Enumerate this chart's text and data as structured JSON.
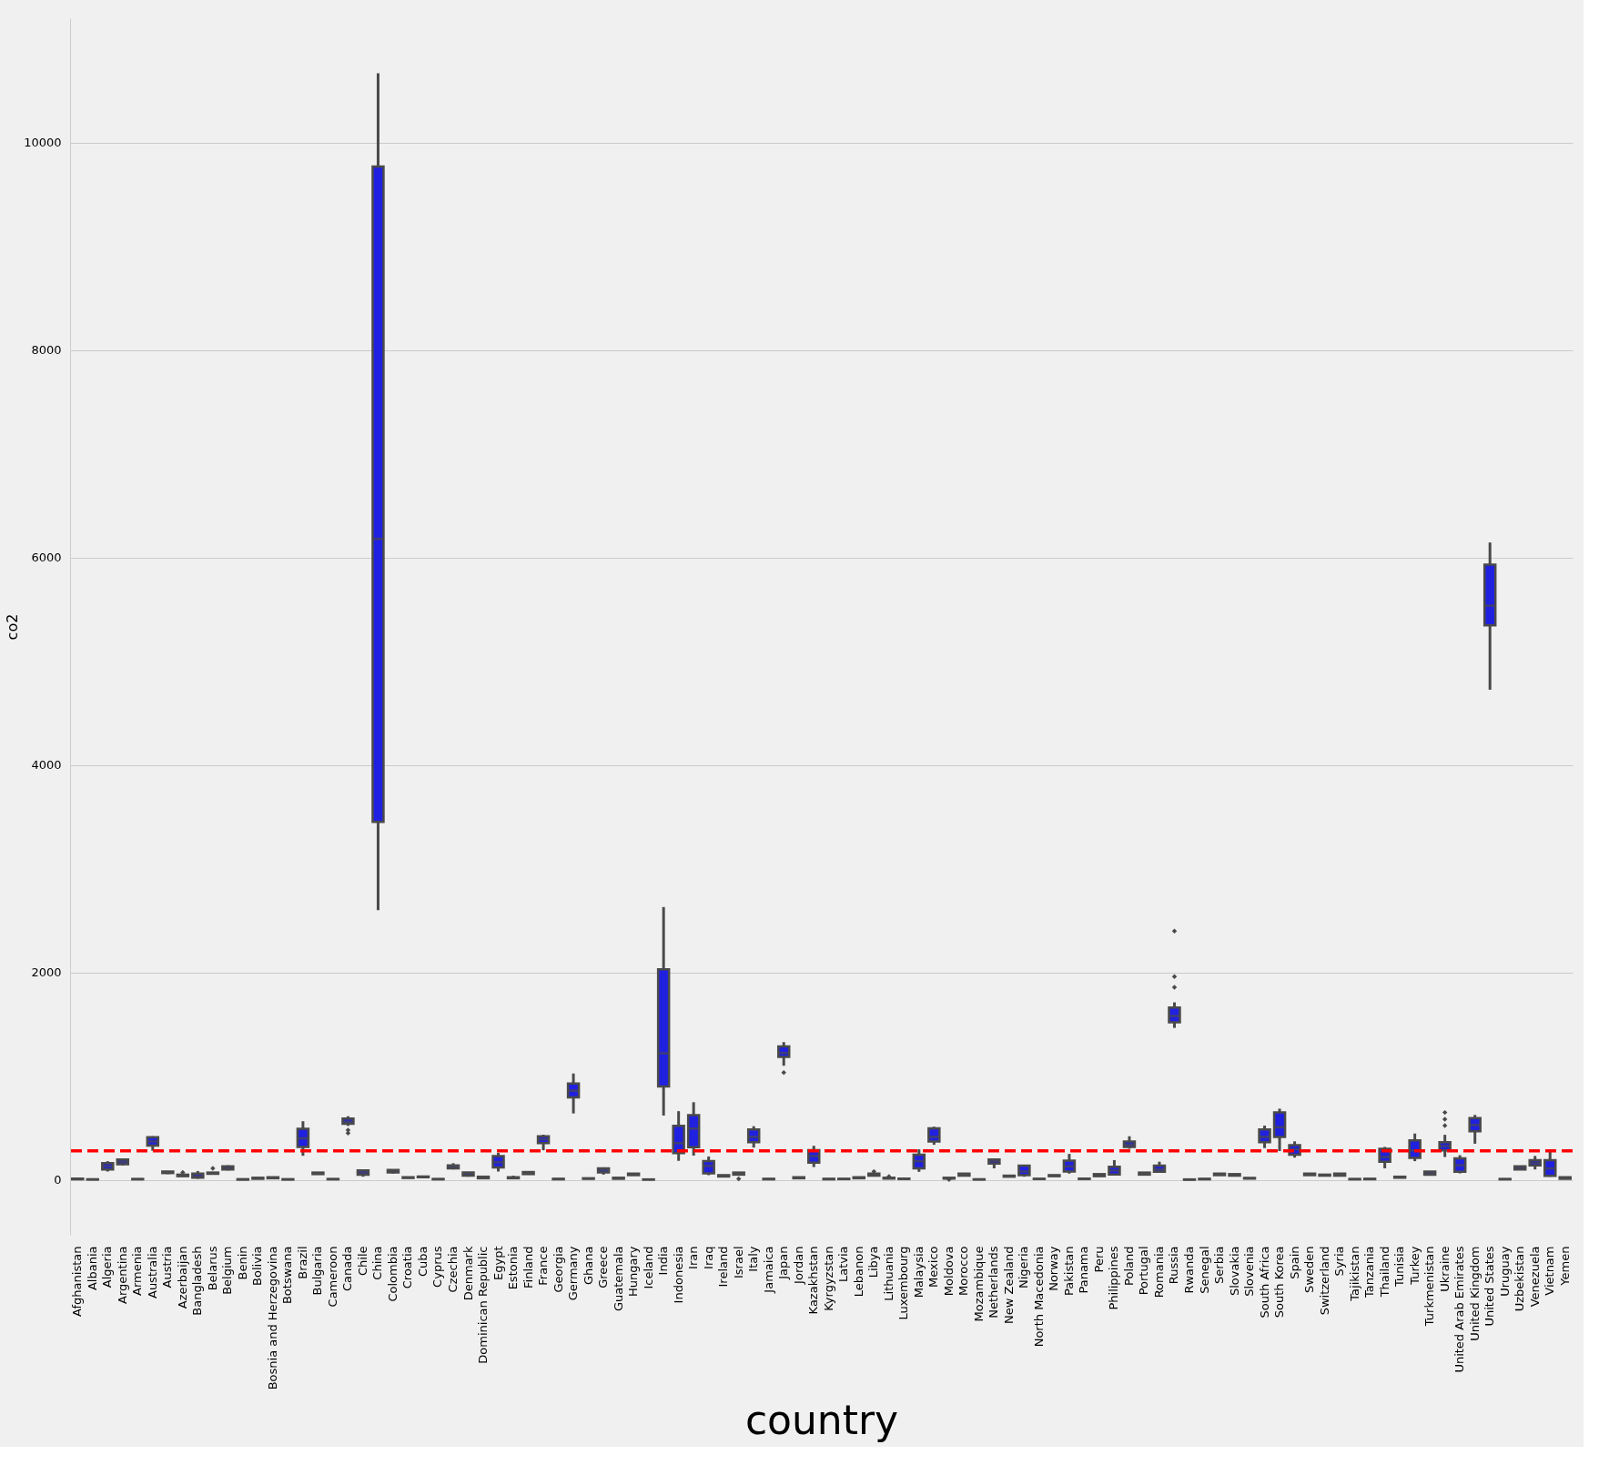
{
  "chart_data": {
    "type": "box",
    "xlabel": "country",
    "ylabel": "co2",
    "categories": [
      "Afghanistan",
      "Albania",
      "Algeria",
      "Argentina",
      "Armenia",
      "Australia",
      "Austria",
      "Azerbaijan",
      "Bangladesh",
      "Belarus",
      "Belgium",
      "Benin",
      "Bolivia",
      "Bosnia and Herzegovina",
      "Botswana",
      "Brazil",
      "Bulgaria",
      "Cameroon",
      "Canada",
      "Chile",
      "China",
      "Colombia",
      "Croatia",
      "Cuba",
      "Cyprus",
      "Czechia",
      "Denmark",
      "Dominican Republic",
      "Egypt",
      "Estonia",
      "Finland",
      "France",
      "Georgia",
      "Germany",
      "Ghana",
      "Greece",
      "Guatemala",
      "Hungary",
      "Iceland",
      "India",
      "Indonesia",
      "Iran",
      "Iraq",
      "Ireland",
      "Israel",
      "Italy",
      "Jamaica",
      "Japan",
      "Jordan",
      "Kazakhstan",
      "Kyrgyzstan",
      "Latvia",
      "Lebanon",
      "Libya",
      "Lithuania",
      "Luxembourg",
      "Malaysia",
      "Mexico",
      "Moldova",
      "Morocco",
      "Mozambique",
      "Netherlands",
      "New Zealand",
      "Nigeria",
      "North Macedonia",
      "Norway",
      "Pakistan",
      "Panama",
      "Peru",
      "Philippines",
      "Poland",
      "Portugal",
      "Romania",
      "Russia",
      "Rwanda",
      "Senegal",
      "Serbia",
      "Slovakia",
      "Slovenia",
      "South Africa",
      "South Korea",
      "Spain",
      "Sweden",
      "Switzerland",
      "Syria",
      "Tajikistan",
      "Tanzania",
      "Thailand",
      "Tunisia",
      "Turkey",
      "Turkmenistan",
      "Ukraine",
      "United Arab Emirates",
      "United Kingdom",
      "United States",
      "Uruguay",
      "Uzbekistan",
      "Venezuela",
      "Vietnam",
      "Yemen"
    ],
    "series": [
      {
        "color": "#2020e0",
        "boxes": [
          {
            "low": 2,
            "q1": 5,
            "median": 8,
            "q3": 12,
            "high": 15
          },
          {
            "low": 2,
            "q1": 3,
            "median": 4,
            "q3": 5,
            "high": 6
          },
          {
            "low": 80,
            "q1": 100,
            "median": 130,
            "q3": 160,
            "high": 180
          },
          {
            "low": 140,
            "q1": 150,
            "median": 175,
            "q3": 195,
            "high": 200
          },
          {
            "low": 3,
            "q1": 5,
            "median": 6,
            "q3": 8,
            "high": 10
          },
          {
            "low": 280,
            "q1": 330,
            "median": 370,
            "q3": 410,
            "high": 420
          },
          {
            "low": 55,
            "q1": 65,
            "median": 70,
            "q3": 80,
            "high": 85
          },
          {
            "low": 30,
            "q1": 35,
            "median": 40,
            "q3": 50,
            "high": 55,
            "outliers": [
              70
            ]
          },
          {
            "low": 10,
            "q1": 20,
            "median": 35,
            "q3": 60,
            "high": 85
          },
          {
            "low": 55,
            "q1": 58,
            "median": 62,
            "q3": 70,
            "high": 75,
            "outliers": [
              110
            ]
          },
          {
            "low": 90,
            "q1": 100,
            "median": 115,
            "q3": 130,
            "high": 140
          },
          {
            "low": 1,
            "q1": 2,
            "median": 4,
            "q3": 6,
            "high": 8
          },
          {
            "low": 8,
            "q1": 10,
            "median": 15,
            "q3": 20,
            "high": 22
          },
          {
            "low": 12,
            "q1": 15,
            "median": 20,
            "q3": 25,
            "high": 28
          },
          {
            "low": 2,
            "q1": 3,
            "median": 4,
            "q3": 6,
            "high": 7
          },
          {
            "low": 232,
            "q1": 317,
            "median": 400,
            "q3": 492,
            "high": 565
          },
          {
            "low": 50,
            "q1": 55,
            "median": 62,
            "q3": 70,
            "high": 75
          },
          {
            "low": 4,
            "q1": 5,
            "median": 6,
            "q3": 8,
            "high": 9
          },
          {
            "low": 520,
            "q1": 540,
            "median": 560,
            "q3": 590,
            "high": 613,
            "outliers": [
              450,
              480
            ]
          },
          {
            "low": 30,
            "q1": 50,
            "median": 70,
            "q3": 90,
            "high": 95
          },
          {
            "low": 2600,
            "q1": 3450,
            "median": 6180,
            "q3": 9770,
            "high": 10670
          },
          {
            "low": 60,
            "q1": 70,
            "median": 80,
            "q3": 95,
            "high": 100
          },
          {
            "low": 15,
            "q1": 18,
            "median": 21,
            "q3": 25,
            "high": 27
          },
          {
            "low": 22,
            "q1": 25,
            "median": 28,
            "q3": 32,
            "high": 34
          },
          {
            "low": 4,
            "q1": 5,
            "median": 6,
            "q3": 8,
            "high": 9
          },
          {
            "low": 100,
            "q1": 110,
            "median": 125,
            "q3": 140,
            "high": 160
          },
          {
            "low": 30,
            "q1": 40,
            "median": 55,
            "q3": 70,
            "high": 75
          },
          {
            "low": 5,
            "q1": 15,
            "median": 20,
            "q3": 30,
            "high": 35
          },
          {
            "low": 80,
            "q1": 120,
            "median": 170,
            "q3": 228,
            "high": 260
          },
          {
            "low": 5,
            "q1": 15,
            "median": 18,
            "q3": 25,
            "high": 40
          },
          {
            "low": 50,
            "q1": 55,
            "median": 65,
            "q3": 75,
            "high": 80
          },
          {
            "low": 285,
            "q1": 355,
            "median": 390,
            "q3": 420,
            "high": 435
          },
          {
            "low": 4,
            "q1": 5,
            "median": 7,
            "q3": 10,
            "high": 12
          },
          {
            "low": 640,
            "q1": 795,
            "median": 860,
            "q3": 928,
            "high": 1025
          },
          {
            "low": 8,
            "q1": 10,
            "median": 12,
            "q3": 15,
            "high": 17
          },
          {
            "low": 50,
            "q1": 70,
            "median": 95,
            "q3": 110,
            "high": 120
          },
          {
            "low": 5,
            "q1": 10,
            "median": 15,
            "q3": 20,
            "high": 25
          },
          {
            "low": 40,
            "q1": 45,
            "median": 52,
            "q3": 60,
            "high": 65
          },
          {
            "low": 1,
            "q1": 2,
            "median": 3,
            "q3": 4,
            "high": 5
          },
          {
            "low": 620,
            "q1": 900,
            "median": 1220,
            "q3": 2030,
            "high": 2630
          },
          {
            "low": 183,
            "q1": 257,
            "median": 354,
            "q3": 520,
            "high": 662
          },
          {
            "low": 234,
            "q1": 314,
            "median": 494,
            "q3": 623,
            "high": 748
          },
          {
            "low": 45,
            "q1": 63,
            "median": 134,
            "q3": 180,
            "high": 225
          },
          {
            "low": 28,
            "q1": 32,
            "median": 38,
            "q3": 45,
            "high": 48
          },
          {
            "low": 45,
            "q1": 50,
            "median": 60,
            "q3": 70,
            "high": 75,
            "outliers": [
              10
            ]
          },
          {
            "low": 311,
            "q1": 363,
            "median": 414,
            "q3": 486,
            "high": 517
          },
          {
            "low": 4,
            "q1": 5,
            "median": 7,
            "q3": 10,
            "high": 11
          },
          {
            "low": 1100,
            "q1": 1185,
            "median": 1223,
            "q3": 1285,
            "high": 1328,
            "outliers": [
              1034
            ]
          },
          {
            "low": 12,
            "q1": 15,
            "median": 20,
            "q3": 25,
            "high": 27
          },
          {
            "low": 123,
            "q1": 165,
            "median": 229,
            "q3": 285,
            "high": 328
          },
          {
            "low": 4,
            "q1": 5,
            "median": 7,
            "q3": 10,
            "high": 11
          },
          {
            "low": 5,
            "q1": 7,
            "median": 8,
            "q3": 10,
            "high": 12
          },
          {
            "low": 12,
            "q1": 15,
            "median": 20,
            "q3": 25,
            "high": 28
          },
          {
            "low": 35,
            "q1": 40,
            "median": 50,
            "q3": 60,
            "high": 65,
            "outliers": [
              80
            ]
          },
          {
            "low": 10,
            "q1": 12,
            "median": 15,
            "q3": 20,
            "high": 22,
            "outliers": [
              32
            ]
          },
          {
            "low": 7,
            "q1": 8,
            "median": 10,
            "q3": 12,
            "high": 13
          },
          {
            "low": 77,
            "q1": 110,
            "median": 180,
            "q3": 243,
            "high": 294
          },
          {
            "low": 338,
            "q1": 369,
            "median": 414,
            "q3": 497,
            "high": 512
          },
          {
            "low": 10,
            "q1": 12,
            "median": 15,
            "q3": 20,
            "high": 22,
            "outliers": [
              2
            ]
          },
          {
            "low": 35,
            "q1": 40,
            "median": 50,
            "q3": 60,
            "high": 65
          },
          {
            "low": 2,
            "q1": 3,
            "median": 4,
            "q3": 5,
            "high": 6
          },
          {
            "low": 111,
            "q1": 157,
            "median": 180,
            "q3": 197,
            "high": 200
          },
          {
            "low": 28,
            "q1": 30,
            "median": 35,
            "q3": 40,
            "high": 42
          },
          {
            "low": 30,
            "q1": 45,
            "median": 80,
            "q3": 137,
            "high": 140
          },
          {
            "low": 7,
            "q1": 8,
            "median": 9,
            "q3": 10,
            "high": 11
          },
          {
            "low": 32,
            "q1": 35,
            "median": 40,
            "q3": 45,
            "high": 48
          },
          {
            "low": 60,
            "q1": 80,
            "median": 130,
            "q3": 185,
            "high": 250
          },
          {
            "low": 7,
            "q1": 8,
            "median": 10,
            "q3": 12,
            "high": 13
          },
          {
            "low": 30,
            "q1": 35,
            "median": 45,
            "q3": 55,
            "high": 58
          },
          {
            "low": 40,
            "q1": 52,
            "median": 90,
            "q3": 125,
            "high": 190
          },
          {
            "low": 300,
            "q1": 317,
            "median": 340,
            "q3": 370,
            "high": 420
          },
          {
            "low": 45,
            "q1": 50,
            "median": 60,
            "q3": 70,
            "high": 72
          },
          {
            "low": 70,
            "q1": 78,
            "median": 100,
            "q3": 137,
            "high": 175
          },
          {
            "low": 1465,
            "q1": 1519,
            "median": 1580,
            "q3": 1662,
            "high": 1711,
            "outliers": [
              1857,
              1960,
              2399
            ]
          },
          {
            "low": 0,
            "q1": 1,
            "median": 2,
            "q3": 4,
            "high": 5
          },
          {
            "low": 4,
            "q1": 5,
            "median": 7,
            "q3": 10,
            "high": 11
          },
          {
            "low": 42,
            "q1": 45,
            "median": 52,
            "q3": 60,
            "high": 62
          },
          {
            "low": 38,
            "q1": 40,
            "median": 48,
            "q3": 55,
            "high": 58
          },
          {
            "low": 10,
            "q1": 12,
            "median": 15,
            "q3": 18,
            "high": 20
          },
          {
            "low": 306,
            "q1": 363,
            "median": 414,
            "q3": 486,
            "high": 523
          },
          {
            "low": 277,
            "q1": 414,
            "median": 508,
            "q3": 651,
            "high": 686
          },
          {
            "low": 214,
            "q1": 243,
            "median": 294,
            "q3": 334,
            "high": 371
          },
          {
            "low": 42,
            "q1": 45,
            "median": 52,
            "q3": 60,
            "high": 62
          },
          {
            "low": 35,
            "q1": 40,
            "median": 45,
            "q3": 50,
            "high": 52
          },
          {
            "low": 35,
            "q1": 40,
            "median": 50,
            "q3": 60,
            "high": 62
          },
          {
            "low": 3,
            "q1": 5,
            "median": 6,
            "q3": 8,
            "high": 9
          },
          {
            "low": 5,
            "q1": 6,
            "median": 8,
            "q3": 10,
            "high": 11
          },
          {
            "low": 111,
            "q1": 173,
            "median": 220,
            "q3": 300,
            "high": 317
          },
          {
            "low": 18,
            "q1": 20,
            "median": 25,
            "q3": 30,
            "high": 32
          },
          {
            "low": 180,
            "q1": 211,
            "median": 283,
            "q3": 380,
            "high": 446
          },
          {
            "low": 45,
            "q1": 50,
            "median": 62,
            "q3": 80,
            "high": 82
          },
          {
            "low": 220,
            "q1": 284,
            "median": 325,
            "q3": 363,
            "high": 434,
            "outliers": [
              523,
              585,
              649
            ]
          },
          {
            "low": 62,
            "q1": 77,
            "median": 141,
            "q3": 206,
            "high": 237
          },
          {
            "low": 348,
            "q1": 468,
            "median": 529,
            "q3": 595,
            "high": 626
          },
          {
            "low": 4725,
            "q1": 5345,
            "median": 5536,
            "q3": 5932,
            "high": 6145
          },
          {
            "low": 4,
            "q1": 5,
            "median": 6,
            "q3": 8,
            "high": 9
          },
          {
            "low": 95,
            "q1": 100,
            "median": 115,
            "q3": 130,
            "high": 135
          },
          {
            "low": 100,
            "q1": 140,
            "median": 165,
            "q3": 190,
            "high": 230
          },
          {
            "low": 30,
            "q1": 39,
            "median": 110,
            "q3": 189,
            "high": 274
          },
          {
            "low": 8,
            "q1": 10,
            "median": 15,
            "q3": 25,
            "high": 27
          }
        ]
      }
    ],
    "ylim": [
      -530,
      11200
    ],
    "yticks": [
      0,
      2000,
      4000,
      6000,
      8000,
      10000
    ],
    "grid": "y",
    "ref_lines": [
      {
        "axis": "y",
        "value": 280,
        "color": "#ff0000",
        "line_style": "dashed"
      }
    ]
  }
}
